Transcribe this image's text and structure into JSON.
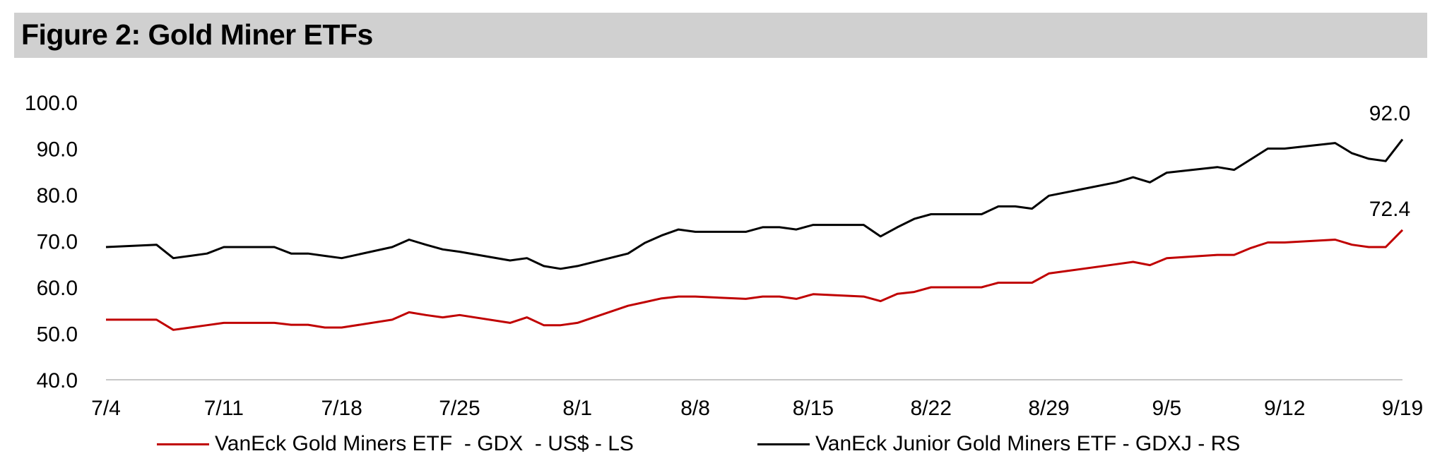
{
  "title": "Figure 2: Gold Miner ETFs",
  "colors": {
    "gdx": "#c00000",
    "gdxj": "#000000",
    "title_bg": "#d0d0d0"
  },
  "chart_data": {
    "type": "line",
    "title": "Figure 2: Gold Miner ETFs",
    "xlabel": "",
    "ylabel": "",
    "x_ticks": [
      "7/4",
      "7/11",
      "7/18",
      "7/25",
      "8/1",
      "8/8",
      "8/15",
      "8/22",
      "8/29",
      "9/5",
      "9/12",
      "9/19"
    ],
    "x_range": [
      "7/4",
      "9/19"
    ],
    "ylim": [
      40,
      100
    ],
    "y_ticks": [
      "40.0",
      "50.0",
      "60.0",
      "70.0",
      "80.0",
      "90.0",
      "100.0"
    ],
    "grid": false,
    "legend_position": "bottom",
    "series": [
      {
        "name": "VanEck Gold Miners ETF  - GDX  - US$ - LS",
        "color": "#c00000",
        "end_label": "72.4",
        "points": [
          [
            "7/4",
            53.0
          ],
          [
            "7/7",
            53.0
          ],
          [
            "7/8",
            50.8
          ],
          [
            "7/9",
            51.3
          ],
          [
            "7/10",
            51.8
          ],
          [
            "7/11",
            52.3
          ],
          [
            "7/14",
            52.3
          ],
          [
            "7/15",
            51.9
          ],
          [
            "7/16",
            51.9
          ],
          [
            "7/17",
            51.3
          ],
          [
            "7/18",
            51.3
          ],
          [
            "7/21",
            53.0
          ],
          [
            "7/22",
            54.6
          ],
          [
            "7/23",
            54.0
          ],
          [
            "7/24",
            53.5
          ],
          [
            "7/25",
            54.0
          ],
          [
            "7/28",
            52.3
          ],
          [
            "7/29",
            53.5
          ],
          [
            "7/30",
            51.8
          ],
          [
            "7/31",
            51.8
          ],
          [
            "8/1",
            52.3
          ],
          [
            "8/4",
            56.0
          ],
          [
            "8/5",
            56.8
          ],
          [
            "8/6",
            57.6
          ],
          [
            "8/7",
            58.0
          ],
          [
            "8/8",
            58.0
          ],
          [
            "8/11",
            57.5
          ],
          [
            "8/12",
            58.0
          ],
          [
            "8/13",
            58.0
          ],
          [
            "8/14",
            57.5
          ],
          [
            "8/15",
            58.5
          ],
          [
            "8/18",
            58.0
          ],
          [
            "8/19",
            57.0
          ],
          [
            "8/20",
            58.6
          ],
          [
            "8/21",
            59.0
          ],
          [
            "8/22",
            60.0
          ],
          [
            "8/25",
            60.0
          ],
          [
            "8/26",
            61.0
          ],
          [
            "8/27",
            61.0
          ],
          [
            "8/28",
            61.0
          ],
          [
            "8/29",
            63.0
          ],
          [
            "9/2",
            65.0
          ],
          [
            "9/3",
            65.5
          ],
          [
            "9/4",
            64.8
          ],
          [
            "9/5",
            66.3
          ],
          [
            "9/8",
            67.0
          ],
          [
            "9/9",
            67.0
          ],
          [
            "9/10",
            68.5
          ],
          [
            "9/11",
            69.7
          ],
          [
            "9/12",
            69.7
          ],
          [
            "9/15",
            70.3
          ],
          [
            "9/16",
            69.2
          ],
          [
            "9/17",
            68.7
          ],
          [
            "9/18",
            68.7
          ],
          [
            "9/19",
            72.4
          ]
        ]
      },
      {
        "name": "VanEck Junior Gold Miners ETF - GDXJ - RS",
        "color": "#000000",
        "end_label": "92.0",
        "points": [
          [
            "7/4",
            68.7
          ],
          [
            "7/7",
            69.2
          ],
          [
            "7/8",
            66.3
          ],
          [
            "7/9",
            66.8
          ],
          [
            "7/10",
            67.3
          ],
          [
            "7/11",
            68.7
          ],
          [
            "7/14",
            68.7
          ],
          [
            "7/15",
            67.3
          ],
          [
            "7/16",
            67.3
          ],
          [
            "7/17",
            66.8
          ],
          [
            "7/18",
            66.3
          ],
          [
            "7/21",
            68.7
          ],
          [
            "7/22",
            70.3
          ],
          [
            "7/23",
            69.2
          ],
          [
            "7/24",
            68.2
          ],
          [
            "7/25",
            67.7
          ],
          [
            "7/28",
            65.8
          ],
          [
            "7/29",
            66.3
          ],
          [
            "7/30",
            64.6
          ],
          [
            "7/31",
            64.0
          ],
          [
            "8/1",
            64.6
          ],
          [
            "8/4",
            67.3
          ],
          [
            "8/5",
            69.6
          ],
          [
            "8/6",
            71.2
          ],
          [
            "8/7",
            72.5
          ],
          [
            "8/8",
            72.0
          ],
          [
            "8/11",
            72.0
          ],
          [
            "8/12",
            73.0
          ],
          [
            "8/13",
            73.0
          ],
          [
            "8/14",
            72.5
          ],
          [
            "8/15",
            73.5
          ],
          [
            "8/18",
            73.5
          ],
          [
            "8/19",
            71.0
          ],
          [
            "8/20",
            73.0
          ],
          [
            "8/21",
            74.8
          ],
          [
            "8/22",
            75.8
          ],
          [
            "8/25",
            75.8
          ],
          [
            "8/26",
            77.5
          ],
          [
            "8/27",
            77.5
          ],
          [
            "8/28",
            77.0
          ],
          [
            "8/29",
            79.8
          ],
          [
            "9/2",
            82.7
          ],
          [
            "9/3",
            83.8
          ],
          [
            "9/4",
            82.7
          ],
          [
            "9/5",
            84.8
          ],
          [
            "9/8",
            86.0
          ],
          [
            "9/9",
            85.4
          ],
          [
            "9/10",
            87.7
          ],
          [
            "9/11",
            90.0
          ],
          [
            "9/12",
            90.0
          ],
          [
            "9/15",
            91.2
          ],
          [
            "9/16",
            89.0
          ],
          [
            "9/17",
            87.8
          ],
          [
            "9/18",
            87.3
          ],
          [
            "9/19",
            92.0
          ]
        ]
      }
    ]
  },
  "legend": [
    {
      "label": "VanEck Gold Miners ETF  - GDX  - US$ - LS",
      "color": "#c00000"
    },
    {
      "label": "VanEck Junior Gold Miners ETF - GDXJ - RS",
      "color": "#000000"
    }
  ]
}
